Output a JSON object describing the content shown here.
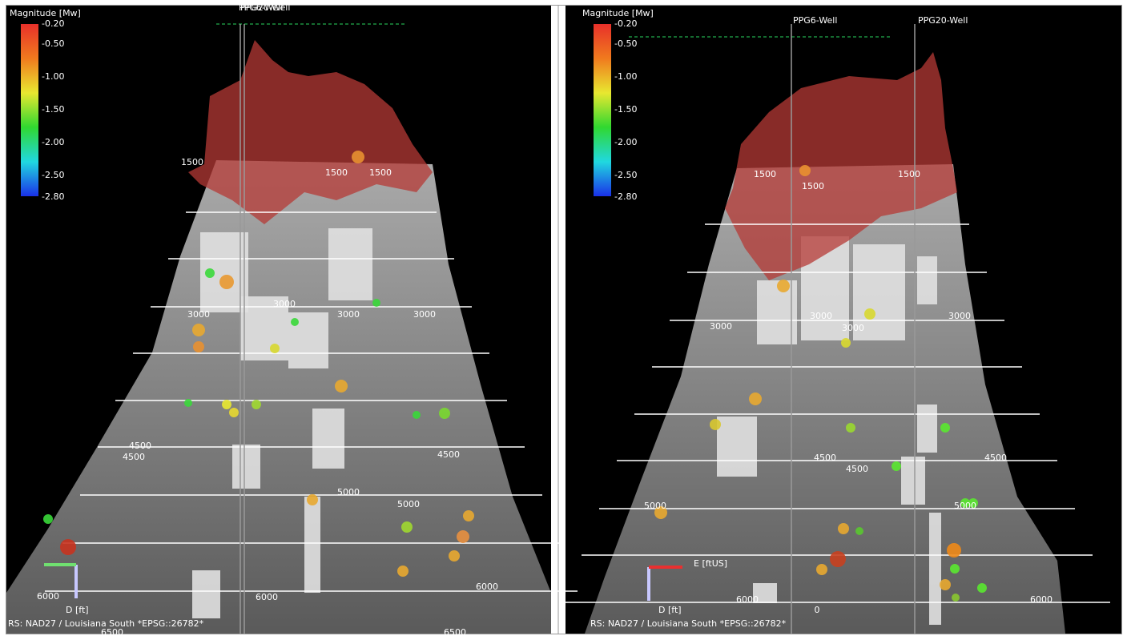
{
  "left_view": {
    "colorbar": {
      "title": "Magnitude [Mw]",
      "labels": [
        "-0.20",
        "-0.50",
        "-1.00",
        "-1.50",
        "-2.00",
        "-2.50",
        "-2.80"
      ]
    },
    "wells": [
      "PPG20-Well",
      "PPG6-Well"
    ],
    "depth_labels": [
      "1500",
      "1500",
      "1500",
      "3000",
      "3000",
      "3000",
      "3000",
      "4500",
      "4500",
      "4500",
      "5000",
      "5000",
      "6000",
      "6000",
      "6000",
      "6500",
      "6500"
    ],
    "axis_down": "D [ft]",
    "crs": "RS: NAD27 / Louisiana South *EPSG::26782*"
  },
  "right_view": {
    "colorbar": {
      "title": "Magnitude [Mw]",
      "labels": [
        "-0.20",
        "-0.50",
        "-1.00",
        "-1.50",
        "-2.00",
        "-2.50",
        "-2.80"
      ]
    },
    "wells": [
      "PPG6-Well",
      "PPG20-Well"
    ],
    "depth_labels": [
      "1500",
      "1500",
      "1500",
      "3000",
      "3000",
      "3000",
      "3000",
      "4500",
      "4500",
      "4500",
      "5000",
      "5000",
      "6000",
      "6000",
      "0"
    ],
    "axis_east": "E [ftUS]",
    "axis_down": "D [ft]",
    "crs": "RS: NAD27 / Louisiana South *EPSG::26782*"
  }
}
